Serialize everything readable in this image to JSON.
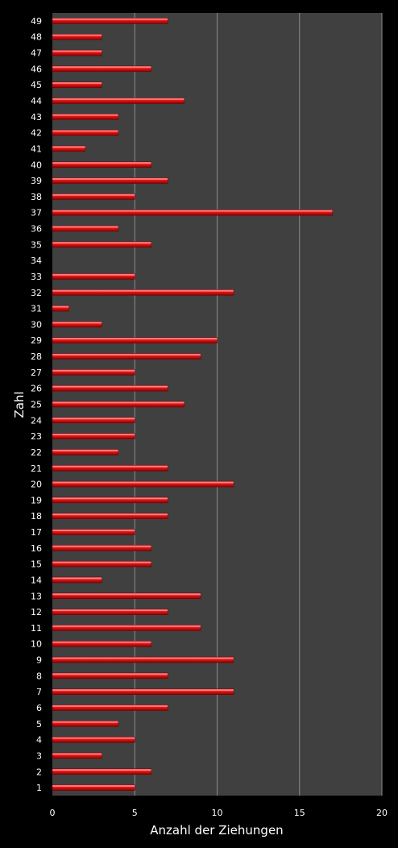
{
  "chart_data": {
    "type": "bar",
    "orientation": "horizontal",
    "xlabel": "Anzahl der Ziehungen",
    "ylabel": "Zahl",
    "xlim": [
      0,
      20
    ],
    "x_ticks": [
      0,
      5,
      10,
      15,
      20
    ],
    "grid": "vertical major gridlines",
    "legend": "none",
    "categories": [
      "1",
      "2",
      "3",
      "4",
      "5",
      "6",
      "7",
      "8",
      "9",
      "10",
      "11",
      "12",
      "13",
      "14",
      "15",
      "16",
      "17",
      "18",
      "19",
      "20",
      "21",
      "22",
      "23",
      "24",
      "25",
      "26",
      "27",
      "28",
      "29",
      "30",
      "31",
      "32",
      "33",
      "34",
      "35",
      "36",
      "37",
      "38",
      "39",
      "40",
      "41",
      "42",
      "43",
      "44",
      "45",
      "46",
      "47",
      "48",
      "49"
    ],
    "values": [
      5,
      6,
      3,
      5,
      4,
      7,
      11,
      7,
      11,
      6,
      9,
      7,
      9,
      3,
      6,
      6,
      5,
      7,
      7,
      11,
      7,
      4,
      5,
      5,
      8,
      7,
      5,
      9,
      10,
      3,
      1,
      11,
      5,
      0,
      6,
      4,
      17,
      5,
      7,
      6,
      2,
      4,
      4,
      8,
      3,
      6,
      3,
      3,
      7
    ],
    "colors": {
      "background": "#000000",
      "plot_area": "#404040",
      "gridline": "#8c8c8c",
      "bar_light": "#ff5a5a",
      "bar_mid": "#e01010",
      "bar_dark": "#8a0000",
      "text": "#ffffff"
    }
  }
}
